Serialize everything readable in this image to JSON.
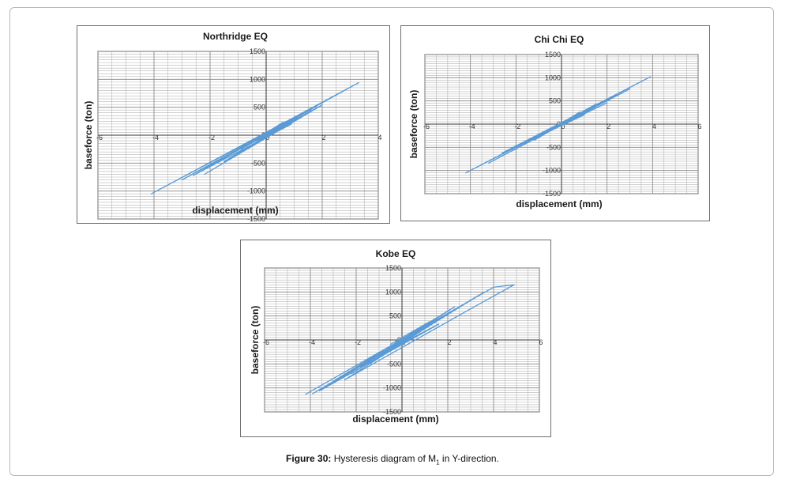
{
  "chart_data": [
    {
      "type": "scatter",
      "title": "Northridge EQ",
      "xlabel": "displacement (mm)",
      "ylabel": "baseforce (ton)",
      "xlim": [
        -6,
        4
      ],
      "ylim": [
        -1500,
        1500
      ],
      "xticks": [
        -6,
        -4,
        -2,
        0,
        2,
        4
      ],
      "yticks": [
        -1500,
        -1000,
        -500,
        0,
        500,
        1000,
        1500
      ],
      "grid": true,
      "series": [
        {
          "color": "#5b9bd5",
          "x": [
            -0.2,
            0.6,
            -0.9,
            1.1,
            -1.5,
            1.6,
            -2.2,
            2.0,
            -3.0,
            3.3,
            -4.1,
            1.8,
            -2.6,
            0.9,
            -1.2,
            0.3
          ],
          "y": [
            -40,
            230,
            -250,
            310,
            -470,
            440,
            -700,
            540,
            -800,
            940,
            -1050,
            520,
            -720,
            200,
            -300,
            60
          ]
        }
      ]
    },
    {
      "type": "scatter",
      "title": "Chi Chi EQ",
      "xlabel": "displacement (mm)",
      "ylabel": "baseforce (ton)",
      "xlim": [
        -6,
        6
      ],
      "ylim": [
        -1500,
        1500
      ],
      "xticks": [
        -6,
        -4,
        -2,
        0,
        2,
        4,
        6
      ],
      "yticks": [
        -1500,
        -1000,
        -500,
        0,
        500,
        1000,
        1500
      ],
      "grid": true,
      "series": [
        {
          "color": "#5b9bd5",
          "x": [
            -0.3,
            0.8,
            -1.2,
            1.5,
            -2.1,
            2.4,
            -3.2,
            3.0,
            -4.2,
            3.9,
            -2.6,
            2.0,
            -1.6,
            1.0,
            -0.5,
            0.2
          ],
          "y": [
            -80,
            260,
            -350,
            430,
            -560,
            620,
            -840,
            760,
            -1050,
            1020,
            -620,
            460,
            -400,
            200,
            -120,
            40
          ]
        }
      ]
    },
    {
      "type": "scatter",
      "title": "Kobe  EQ",
      "xlabel": "displacement (mm)",
      "ylabel": "baseforce (ton)",
      "xlim": [
        -6,
        6
      ],
      "ylim": [
        -1500,
        1500
      ],
      "xticks": [
        -6,
        -4,
        -2,
        0,
        2,
        4,
        6
      ],
      "yticks": [
        -1500,
        -1000,
        -500,
        0,
        500,
        1000,
        1500
      ],
      "grid": true,
      "series": [
        {
          "color": "#5b9bd5",
          "x": [
            -0.5,
            1.2,
            -1.8,
            2.3,
            -3.0,
            3.2,
            -4.2,
            4.0,
            4.9,
            3.0,
            -2.5,
            2.6,
            -3.6,
            1.6,
            -1.0,
            0.7,
            -2.2,
            3.6,
            -3.9,
            1.0,
            -0.3
          ],
          "y": [
            -90,
            380,
            -560,
            690,
            -860,
            880,
            -1130,
            1100,
            1150,
            650,
            -830,
            720,
            -1060,
            330,
            -320,
            160,
            -700,
            1000,
            -1120,
            240,
            -40
          ]
        }
      ]
    }
  ],
  "caption": {
    "figure_label": "Figure 30:",
    "text_before_sub": " Hysteresis diagram of M",
    "subscript": "1",
    "text_after_sub": " in Y-direction."
  }
}
